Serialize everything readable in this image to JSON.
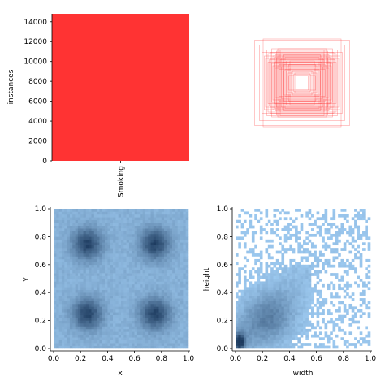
{
  "chart_data": [
    {
      "panel": "instances-bar",
      "type": "bar",
      "categories": [
        "Smoking"
      ],
      "values": [
        14800
      ],
      "colors": [
        "#ff3333"
      ],
      "xlabel": "",
      "ylabel": "instances",
      "ylim": [
        0,
        14800
      ],
      "yticks": [
        0,
        2000,
        4000,
        6000,
        8000,
        10000,
        12000,
        14000
      ],
      "ytick_labels": [
        "0",
        "2000",
        "4000",
        "6000",
        "8000",
        "10000",
        "12000",
        "14000"
      ],
      "grid": false,
      "legend": "none"
    },
    {
      "panel": "box-overlay",
      "type": "scatter",
      "description_units": "normalized box width/height centred at (0.5, 0.5)",
      "color": "#ff3333",
      "boxes": [
        [
          0.36,
          0.38
        ],
        [
          0.46,
          0.42
        ],
        [
          0.3,
          0.3
        ],
        [
          0.52,
          0.5
        ],
        [
          0.4,
          0.44
        ],
        [
          0.24,
          0.28
        ],
        [
          0.56,
          0.48
        ],
        [
          0.34,
          0.4
        ],
        [
          0.44,
          0.36
        ],
        [
          0.28,
          0.22
        ],
        [
          0.5,
          0.56
        ],
        [
          0.38,
          0.3
        ],
        [
          0.6,
          0.4
        ],
        [
          0.2,
          0.24
        ],
        [
          0.42,
          0.52
        ],
        [
          0.32,
          0.34
        ],
        [
          0.48,
          0.44
        ],
        [
          0.26,
          0.36
        ],
        [
          0.54,
          0.38
        ],
        [
          0.18,
          0.18
        ],
        [
          0.4,
          0.28
        ],
        [
          0.36,
          0.48
        ],
        [
          0.58,
          0.54
        ],
        [
          0.22,
          0.3
        ],
        [
          0.3,
          0.2
        ],
        [
          0.44,
          0.46
        ],
        [
          0.34,
          0.26
        ],
        [
          0.62,
          0.44
        ],
        [
          0.16,
          0.2
        ],
        [
          0.46,
          0.34
        ],
        [
          0.28,
          0.42
        ],
        [
          0.52,
          0.4
        ],
        [
          0.24,
          0.16
        ],
        [
          0.4,
          0.56
        ],
        [
          0.56,
          0.34
        ],
        [
          0.14,
          0.14
        ],
        [
          0.32,
          0.44
        ],
        [
          0.48,
          0.28
        ],
        [
          0.2,
          0.36
        ],
        [
          0.38,
          0.22
        ],
        [
          0.12,
          0.16
        ],
        [
          0.26,
          0.2
        ],
        [
          0.42,
          0.4
        ],
        [
          0.66,
          0.5
        ],
        [
          0.3,
          0.46
        ],
        [
          0.5,
          0.32
        ],
        [
          0.22,
          0.12
        ],
        [
          0.36,
          0.54
        ],
        [
          0.1,
          0.12
        ],
        [
          0.44,
          0.24
        ],
        [
          0.78,
          0.7
        ],
        [
          0.7,
          0.62
        ],
        [
          0.64,
          0.72
        ]
      ],
      "grid": false
    },
    {
      "panel": "xy-histogram",
      "type": "heatmap",
      "xlabel": "x",
      "ylabel": "y",
      "xlim": [
        0,
        1
      ],
      "ylim": [
        0,
        1
      ],
      "xticks": [
        0.0,
        0.2,
        0.4,
        0.6,
        0.8,
        1.0
      ],
      "xtick_labels": [
        "0.0",
        "0.2",
        "0.4",
        "0.6",
        "0.8",
        "1.0"
      ],
      "yticks": [
        0.0,
        0.2,
        0.4,
        0.6,
        0.8,
        1.0
      ],
      "ytick_labels": [
        "0.0",
        "0.2",
        "0.4",
        "0.6",
        "0.8",
        "1.0"
      ],
      "bins": 50,
      "density_peaks": [
        {
          "x": 0.25,
          "y": 0.75,
          "weight": 1.0
        },
        {
          "x": 0.75,
          "y": 0.75,
          "weight": 1.0
        },
        {
          "x": 0.25,
          "y": 0.25,
          "weight": 1.0
        },
        {
          "x": 0.75,
          "y": 0.25,
          "weight": 1.0
        }
      ],
      "color_light": "#9ecbf2",
      "color_dark": "#1c3a5e",
      "grid": false
    },
    {
      "panel": "width-height-histogram",
      "type": "heatmap",
      "xlabel": "width",
      "ylabel": "height",
      "xlim": [
        0,
        1
      ],
      "ylim": [
        0,
        1
      ],
      "xticks": [
        0.0,
        0.2,
        0.4,
        0.6,
        0.8,
        1.0
      ],
      "xtick_labels": [
        "0.0",
        "0.2",
        "0.4",
        "0.6",
        "0.8",
        "1.0"
      ],
      "yticks": [
        0.0,
        0.2,
        0.4,
        0.6,
        0.8,
        1.0
      ],
      "ytick_labels": [
        "0.0",
        "0.2",
        "0.4",
        "0.6",
        "0.8",
        "1.0"
      ],
      "bins": 50,
      "density_peaks": [
        {
          "x": 0.03,
          "y": 0.05,
          "weight": 1.0
        },
        {
          "x": 0.25,
          "y": 0.22,
          "weight": 0.35
        }
      ],
      "color_light": "#9ecbf2",
      "color_dark": "#1c3a5e",
      "grid": false
    }
  ]
}
